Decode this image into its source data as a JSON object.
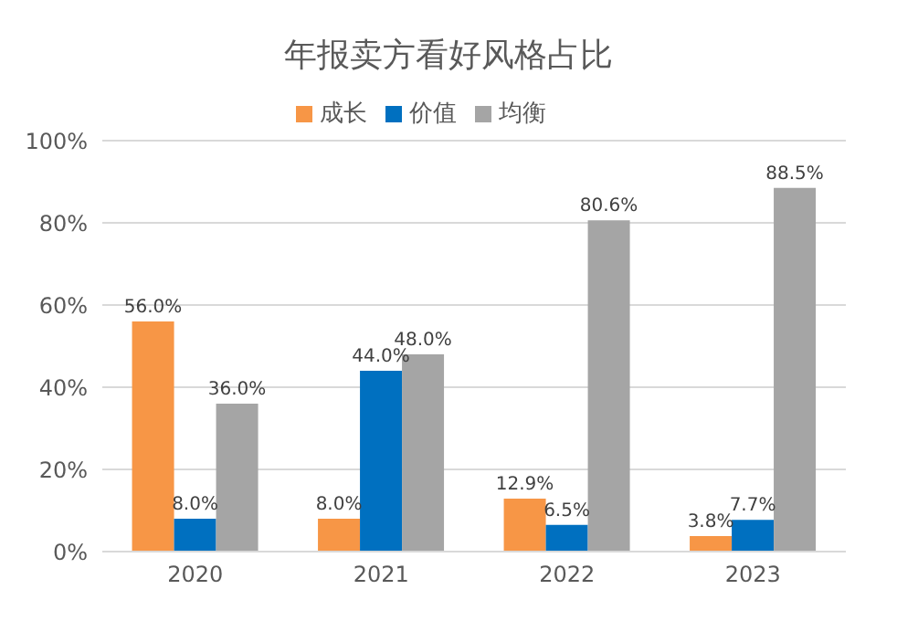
{
  "chart_data": {
    "type": "bar",
    "title": "年报卖方看好风格占比",
    "categories": [
      "2020",
      "2021",
      "2022",
      "2023"
    ],
    "series": [
      {
        "name": "成长",
        "color": "#f79646",
        "values": [
          56.0,
          8.0,
          12.9,
          3.8
        ],
        "value_labels": [
          "56.0%",
          "8.0%",
          "12.9%",
          "3.8%"
        ]
      },
      {
        "name": "价值",
        "color": "#0070c0",
        "values": [
          8.0,
          44.0,
          6.5,
          7.7
        ],
        "value_labels": [
          "8.0%",
          "44.0%",
          "6.5%",
          "7.7%"
        ]
      },
      {
        "name": "均衡",
        "color": "#a5a5a5",
        "values": [
          36.0,
          48.0,
          80.6,
          88.5
        ],
        "value_labels": [
          "36.0%",
          "48.0%",
          "80.6%",
          "88.5%"
        ]
      }
    ],
    "ylim": [
      0,
      100
    ],
    "yticks": [
      {
        "value": 0,
        "label": "0%"
      },
      {
        "value": 20,
        "label": "20%"
      },
      {
        "value": 40,
        "label": "40%"
      },
      {
        "value": 60,
        "label": "60%"
      },
      {
        "value": 80,
        "label": "80%"
      },
      {
        "value": 100,
        "label": "100%"
      }
    ],
    "grid": "y",
    "legend": "top"
  }
}
